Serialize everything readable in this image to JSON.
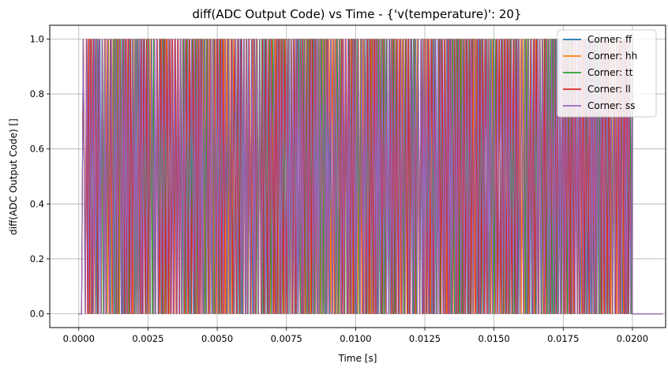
{
  "chart_data": {
    "type": "line",
    "title": "diff(ADC Output Code) vs Time - {'v(temperature)': 20}",
    "xlabel": "Time [s]",
    "ylabel": "diff(ADC Output Code) []",
    "xlim": [
      -0.00105,
      0.0212
    ],
    "ylim": [
      -0.05,
      1.05
    ],
    "xticks": [
      "0.0000",
      "0.0025",
      "0.0050",
      "0.0075",
      "0.0100",
      "0.0125",
      "0.0150",
      "0.0175",
      "0.0200"
    ],
    "xtick_values": [
      0,
      0.0025,
      0.005,
      0.0075,
      0.01,
      0.0125,
      0.015,
      0.0175,
      0.02
    ],
    "yticks": [
      "0.0",
      "0.2",
      "0.4",
      "0.6",
      "0.8",
      "1.0"
    ],
    "ytick_values": [
      0,
      0.2,
      0.4,
      0.6,
      0.8,
      1.0
    ],
    "grid": true,
    "legend_position": "top-right",
    "pulse_train": {
      "start": 0.0001,
      "end": 0.02,
      "period": 0.0001,
      "low": 0,
      "high": 1
    },
    "series": [
      {
        "name": "Corner: ff",
        "color": "#1f77b4",
        "values_description": "0/1 pulse train"
      },
      {
        "name": "Corner: hh",
        "color": "#ff7f0e",
        "values_description": "0/1 pulse train"
      },
      {
        "name": "Corner: tt",
        "color": "#2ca02c",
        "values_description": "0/1 pulse train"
      },
      {
        "name": "Corner: ll",
        "color": "#d62728",
        "values_description": "0/1 pulse train"
      },
      {
        "name": "Corner: ss",
        "color": "#9467bd",
        "values_description": "0/1 pulse train"
      }
    ]
  }
}
